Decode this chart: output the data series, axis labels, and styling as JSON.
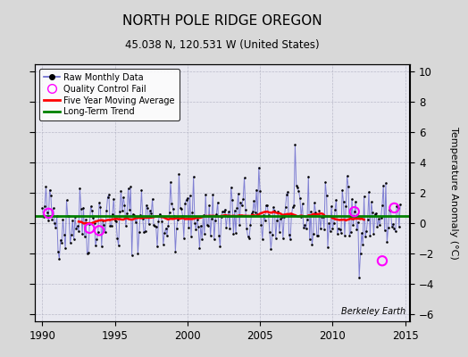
{
  "title": "NORTH POLE RIDGE OREGON",
  "subtitle": "45.038 N, 120.531 W (United States)",
  "ylabel": "Temperature Anomaly (°C)",
  "watermark": "Berkeley Earth",
  "xlim": [
    1989.5,
    2015.3
  ],
  "ylim": [
    -6.5,
    10.5
  ],
  "yticks": [
    -6,
    -4,
    -2,
    0,
    2,
    4,
    6,
    8,
    10
  ],
  "xticks": [
    1990,
    1995,
    2000,
    2005,
    2010,
    2015
  ],
  "bg_color": "#d8d8d8",
  "plot_bg_color": "#e8e8f0",
  "long_term_trend_y": 0.45,
  "seed": 42,
  "qc_fails": [
    [
      1990.42,
      0.65
    ],
    [
      1993.25,
      -0.35
    ],
    [
      1993.92,
      -0.5
    ],
    [
      2011.5,
      0.75
    ],
    [
      2013.42,
      -2.5
    ],
    [
      2014.25,
      1.0
    ]
  ]
}
